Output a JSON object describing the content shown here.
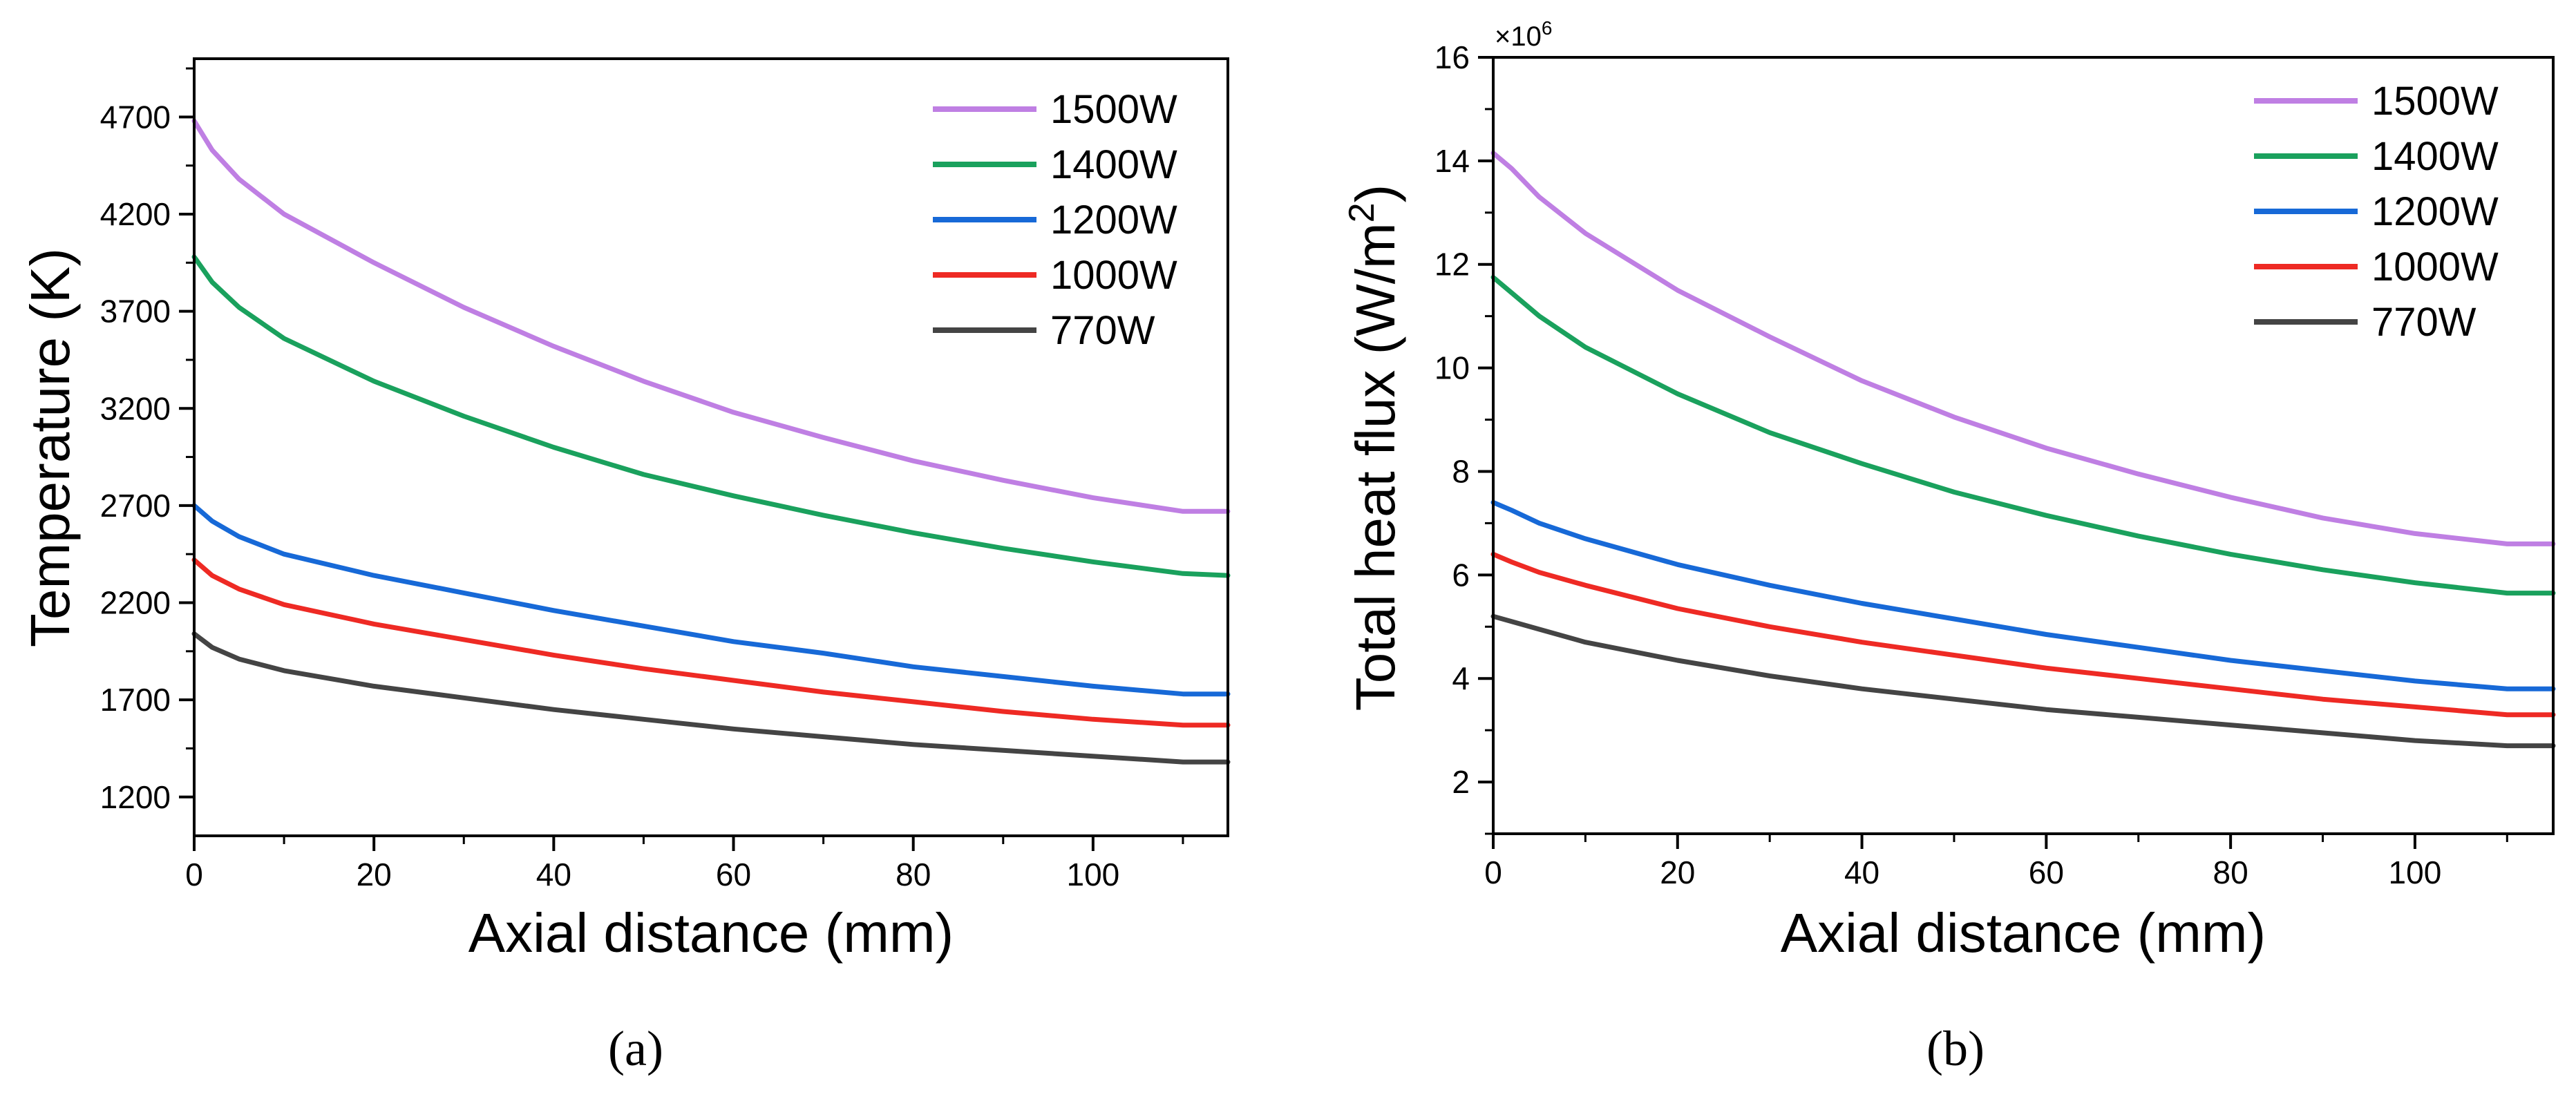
{
  "figure": {
    "panel_a_label": "(a)",
    "panel_b_label": "(b)"
  },
  "chart_data": [
    {
      "type": "line",
      "panel": "a",
      "xlabel": "Axial distance (mm)",
      "ylabel": "Temperature (K)",
      "xlim": [
        0,
        115
      ],
      "ylim": [
        1000,
        5000
      ],
      "xticks": [
        0,
        20,
        40,
        60,
        80,
        100
      ],
      "yticks": [
        1200,
        1700,
        2200,
        2700,
        3200,
        3700,
        4200,
        4700
      ],
      "legend_position": "top-right",
      "x": [
        0,
        2,
        5,
        10,
        20,
        30,
        40,
        50,
        60,
        70,
        80,
        90,
        100,
        110,
        115
      ],
      "series": [
        {
          "name": "1500W",
          "color": "#bf7fe3",
          "values": [
            4680,
            4530,
            4380,
            4200,
            3950,
            3720,
            3520,
            3340,
            3180,
            3050,
            2930,
            2830,
            2740,
            2670,
            2670
          ]
        },
        {
          "name": "1400W",
          "color": "#1aa15d",
          "values": [
            3980,
            3850,
            3720,
            3560,
            3340,
            3160,
            3000,
            2860,
            2750,
            2650,
            2560,
            2480,
            2410,
            2350,
            2340
          ]
        },
        {
          "name": "1200W",
          "color": "#1769d7",
          "values": [
            2700,
            2620,
            2540,
            2450,
            2340,
            2250,
            2160,
            2080,
            2000,
            1940,
            1870,
            1820,
            1770,
            1730,
            1730
          ]
        },
        {
          "name": "1000W",
          "color": "#ee2a24",
          "values": [
            2420,
            2340,
            2270,
            2190,
            2090,
            2010,
            1930,
            1860,
            1800,
            1740,
            1690,
            1640,
            1600,
            1570,
            1570
          ]
        },
        {
          "name": "770W",
          "color": "#444444",
          "values": [
            2040,
            1970,
            1910,
            1850,
            1770,
            1710,
            1650,
            1600,
            1550,
            1510,
            1470,
            1440,
            1410,
            1380,
            1380
          ]
        }
      ]
    },
    {
      "type": "line",
      "panel": "b",
      "xlabel": "Axial distance (mm)",
      "ylabel": "Total heat flux (W/m²)",
      "ylabel_main": "Total heat flux (W/m",
      "ylabel_sup": "2",
      "ylabel_close": ")",
      "y_multiplier_base": "×10",
      "y_multiplier_exp": "6",
      "xlim": [
        0,
        115
      ],
      "ylim": [
        1,
        16
      ],
      "xticks": [
        0,
        20,
        40,
        60,
        80,
        100
      ],
      "yticks": [
        2,
        4,
        6,
        8,
        10,
        12,
        14,
        16
      ],
      "legend_position": "top-right",
      "x": [
        0,
        2,
        5,
        10,
        20,
        30,
        40,
        50,
        60,
        70,
        80,
        90,
        100,
        110,
        115
      ],
      "series": [
        {
          "name": "1500W",
          "color": "#bf7fe3",
          "values": [
            14.15,
            13.85,
            13.3,
            12.6,
            11.5,
            10.6,
            9.75,
            9.05,
            8.45,
            7.95,
            7.5,
            7.1,
            6.8,
            6.6,
            6.6
          ]
        },
        {
          "name": "1400W",
          "color": "#1aa15d",
          "values": [
            11.75,
            11.45,
            11.0,
            10.4,
            9.5,
            8.75,
            8.15,
            7.6,
            7.15,
            6.75,
            6.4,
            6.1,
            5.85,
            5.65,
            5.65
          ]
        },
        {
          "name": "1200W",
          "color": "#1769d7",
          "values": [
            7.4,
            7.25,
            7.0,
            6.7,
            6.2,
            5.8,
            5.45,
            5.15,
            4.85,
            4.6,
            4.35,
            4.15,
            3.95,
            3.8,
            3.8
          ]
        },
        {
          "name": "1000W",
          "color": "#ee2a24",
          "values": [
            6.4,
            6.25,
            6.05,
            5.8,
            5.35,
            5.0,
            4.7,
            4.45,
            4.2,
            4.0,
            3.8,
            3.6,
            3.45,
            3.3,
            3.3
          ]
        },
        {
          "name": "770W",
          "color": "#444444",
          "values": [
            5.2,
            5.1,
            4.95,
            4.7,
            4.35,
            4.05,
            3.8,
            3.6,
            3.4,
            3.25,
            3.1,
            2.95,
            2.8,
            2.7,
            2.7
          ]
        }
      ]
    }
  ]
}
